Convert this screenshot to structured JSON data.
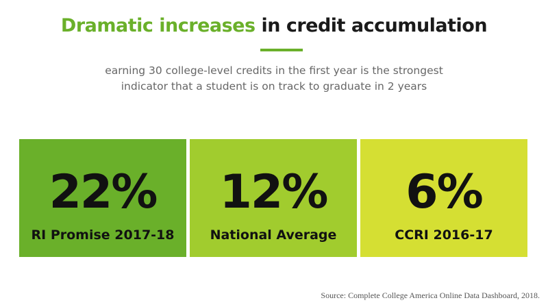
{
  "header": {
    "title_accent": "Dramatic increases",
    "title_rest": " in credit accumulation",
    "subtitle_line1": "earning 30 college-level credits in the first year is the strongest",
    "subtitle_line2": "indicator that a student is on track to graduate in 2 years"
  },
  "stats": [
    {
      "value": "22%",
      "label": "RI Promise 2017-18",
      "color": "#6ab02a"
    },
    {
      "value": "12%",
      "label": "National Average",
      "color": "#a1cc2e"
    },
    {
      "value": "6%",
      "label": "CCRI 2016-17",
      "color": "#d5df33"
    }
  ],
  "colors": {
    "accent": "#6ab02a",
    "title_text": "#1a1a1a",
    "subtitle_text": "#666666"
  },
  "footer": {
    "source": "Source: Complete College America Online Data Dashboard, 2018."
  }
}
